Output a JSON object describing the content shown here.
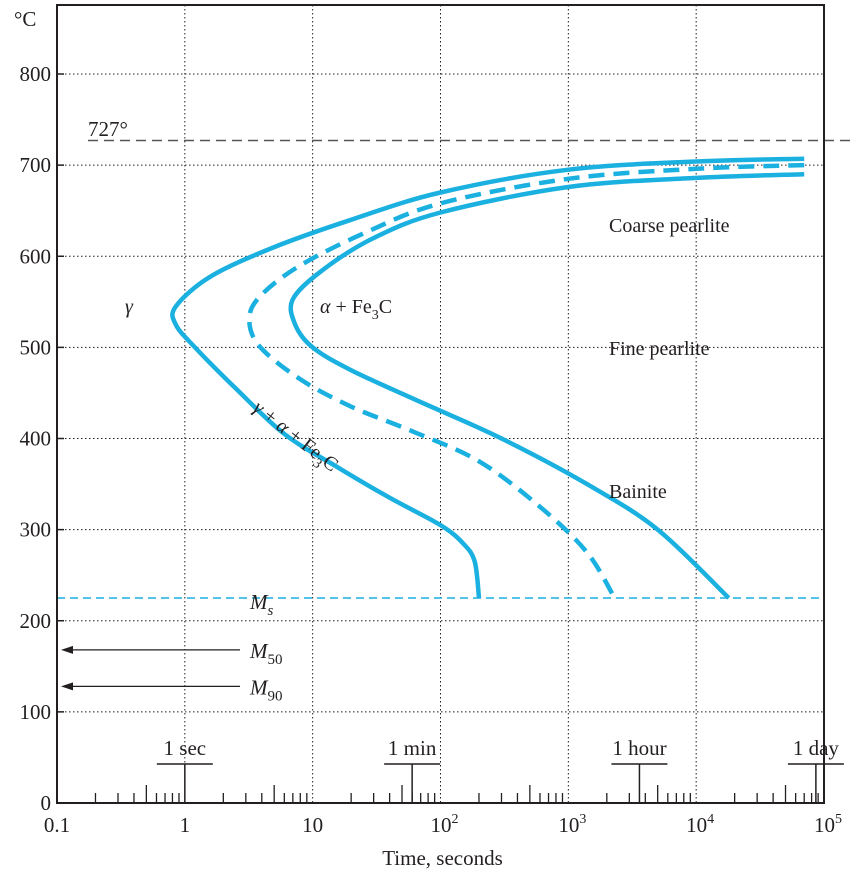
{
  "chart_data": {
    "type": "line",
    "ylabel": "°C",
    "xlabel": "Time, seconds",
    "x_scale": "log",
    "xlim": [
      0.1,
      100000
    ],
    "ylim": [
      0,
      850
    ],
    "y_ticks": [
      {
        "label": "0",
        "value": 0
      },
      {
        "label": "100",
        "value": 100
      },
      {
        "label": "200",
        "value": 200
      },
      {
        "label": "300",
        "value": 300
      },
      {
        "label": "400",
        "value": 400
      },
      {
        "label": "500",
        "value": 500
      },
      {
        "label": "600",
        "value": 600
      },
      {
        "label": "700",
        "value": 700
      },
      {
        "label": "800",
        "value": 800
      }
    ],
    "x_ticks": [
      {
        "label": "0.1",
        "value": 0.1
      },
      {
        "label": "1",
        "value": 1
      },
      {
        "label": "10",
        "value": 10
      },
      {
        "label": "10",
        "sup": "2",
        "value": 100
      },
      {
        "label": "10",
        "sup": "3",
        "value": 1000
      },
      {
        "label": "10",
        "sup": "4",
        "value": 10000
      },
      {
        "label": "10",
        "sup": "5",
        "value": 100000
      }
    ],
    "grid": true,
    "series": [
      {
        "style": "solid",
        "points": [
          [
            70000,
            707
          ],
          [
            10000,
            704
          ],
          [
            1000,
            695
          ],
          [
            100,
            670
          ],
          [
            20,
            640
          ],
          [
            5,
            610
          ],
          [
            1.6,
            578
          ],
          [
            0.85,
            545
          ],
          [
            0.85,
            525
          ],
          [
            1.2,
            500
          ],
          [
            2.5,
            455
          ],
          [
            6,
            405
          ],
          [
            15,
            370
          ],
          [
            40,
            335
          ],
          [
            100,
            305
          ],
          [
            150,
            285
          ],
          [
            185,
            265
          ],
          [
            200,
            225
          ]
        ]
      },
      {
        "style": "dashed",
        "points": [
          [
            70000,
            700
          ],
          [
            10000,
            696
          ],
          [
            1000,
            685
          ],
          [
            100,
            658
          ],
          [
            25,
            625
          ],
          [
            8,
            590
          ],
          [
            4,
            558
          ],
          [
            3.2,
            533
          ],
          [
            3.8,
            502
          ],
          [
            8,
            465
          ],
          [
            20,
            435
          ],
          [
            60,
            408
          ],
          [
            200,
            375
          ],
          [
            600,
            325
          ],
          [
            1400,
            275
          ],
          [
            2300,
            225
          ]
        ]
      },
      {
        "style": "solid",
        "points": [
          [
            70000,
            690
          ],
          [
            10000,
            686
          ],
          [
            1000,
            676
          ],
          [
            100,
            648
          ],
          [
            30,
            620
          ],
          [
            12,
            585
          ],
          [
            7,
            553
          ],
          [
            7.3,
            525
          ],
          [
            10,
            500
          ],
          [
            20,
            475
          ],
          [
            70,
            440
          ],
          [
            300,
            400
          ],
          [
            1400,
            350
          ],
          [
            5000,
            300
          ],
          [
            18000,
            225
          ]
        ]
      }
    ],
    "reference_lines": [
      {
        "label": "727°",
        "value": 727,
        "style": "dashed"
      },
      {
        "label": "M",
        "sub": "s",
        "value": 225,
        "style": "dashed"
      }
    ],
    "arrows": [
      {
        "label": "M",
        "sub": "50",
        "value": 168
      },
      {
        "label": "M",
        "sub": "90",
        "value": 128
      }
    ],
    "time_markers": [
      {
        "label": "1 sec",
        "value": 1
      },
      {
        "label": "1 min",
        "value": 60
      },
      {
        "label": "1 hour",
        "value": 3600
      },
      {
        "label": "1 day",
        "value": 86400
      }
    ],
    "annotations": [
      {
        "text": "γ"
      },
      {
        "text": "α + Fe",
        "sub": "3",
        "tail": "C"
      },
      {
        "text": "γ + α + Fe",
        "sub": "3",
        "tail": "C"
      },
      {
        "text": "Coarse pearlite"
      },
      {
        "text": "Fine pearlite"
      },
      {
        "text": "Bainite"
      }
    ]
  },
  "colors": {
    "curve": "#1ab0e0",
    "axis": "#231f20",
    "reference_line": "#555555"
  }
}
